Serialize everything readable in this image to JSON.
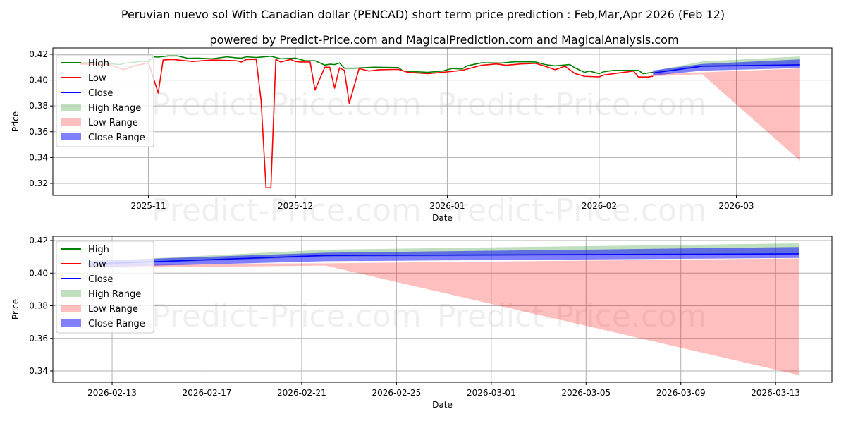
{
  "title": "Peruvian nuevo sol With Canadian dollar (PENCAD) short term price prediction : Feb,Mar,Apr 2026 (Feb 12)",
  "subtitle": "powered by Predict-Price.com and MagicalPrediction.com and MagicalAnalysis.com",
  "watermark": "Predict-Price.com",
  "colors": {
    "high": "#008000",
    "low": "#ff0000",
    "close": "#0000ff",
    "high_range": "rgba(0,128,0,0.25)",
    "low_range": "rgba(255,0,0,0.25)",
    "close_range": "rgba(0,0,255,0.5)"
  },
  "legend": [
    "High",
    "Low",
    "Close",
    "High Range",
    "Low Range",
    "Close Range"
  ],
  "chart_data": [
    {
      "type": "line",
      "xlabel": "Date",
      "ylabel": "Price",
      "xlim": [
        "2025-10-12T12:00",
        "2026-03-20T12:00"
      ],
      "ylim": [
        0.3107,
        0.4249
      ],
      "grid": true,
      "legend_position": "top-left",
      "xticks": [
        "2025-11",
        "2025-12",
        "2026-01",
        "2026-02",
        "2026-03"
      ],
      "yticks": [
        "0.32",
        "0.34",
        "0.36",
        "0.38",
        "0.40",
        "0.42"
      ],
      "series": [
        {
          "name": "High",
          "points": [
            [
              "2025-10-18",
              0.4135
            ],
            [
              "2025-10-22",
              0.4135
            ],
            [
              "2025-10-26",
              0.412
            ],
            [
              "2025-10-28",
              0.4135
            ],
            [
              "2025-10-31",
              0.4145
            ],
            [
              "2025-11-01",
              0.4145
            ],
            [
              "2025-11-02",
              0.418
            ],
            [
              "2025-11-03",
              0.4178
            ],
            [
              "2025-11-05",
              0.4187
            ],
            [
              "2025-11-07",
              0.4187
            ],
            [
              "2025-11-09",
              0.4169
            ],
            [
              "2025-11-11",
              0.417
            ],
            [
              "2025-11-14",
              0.4165
            ],
            [
              "2025-11-17",
              0.418
            ],
            [
              "2025-11-19",
              0.4172
            ],
            [
              "2025-11-20",
              0.417
            ],
            [
              "2025-11-21",
              0.418
            ],
            [
              "2025-11-23",
              0.4175
            ],
            [
              "2025-11-26",
              0.4185
            ],
            [
              "2025-11-28",
              0.4165
            ],
            [
              "2025-12-01",
              0.417
            ],
            [
              "2025-12-03",
              0.415
            ],
            [
              "2025-12-05",
              0.415
            ],
            [
              "2025-12-07",
              0.4116
            ],
            [
              "2025-12-08",
              0.4123
            ],
            [
              "2025-12-09",
              0.412
            ],
            [
              "2025-12-10",
              0.4133
            ],
            [
              "2025-12-11",
              0.4092
            ],
            [
              "2025-12-13",
              0.4092
            ],
            [
              "2025-12-17",
              0.41
            ],
            [
              "2025-12-22",
              0.4097
            ],
            [
              "2025-12-23",
              0.407
            ],
            [
              "2025-12-28",
              0.406
            ],
            [
              "2025-12-31",
              0.407
            ],
            [
              "2026-01-02",
              0.409
            ],
            [
              "2026-01-04",
              0.4085
            ],
            [
              "2026-01-05",
              0.411
            ],
            [
              "2026-01-08",
              0.4134
            ],
            [
              "2026-01-12",
              0.4132
            ],
            [
              "2026-01-15",
              0.4143
            ],
            [
              "2026-01-19",
              0.414
            ],
            [
              "2026-01-21",
              0.412
            ],
            [
              "2026-01-23",
              0.411
            ],
            [
              "2026-01-26",
              0.412
            ],
            [
              "2026-01-27",
              0.4096
            ],
            [
              "2026-01-29",
              0.406
            ],
            [
              "2026-01-30",
              0.407
            ],
            [
              "2026-02-01",
              0.405
            ],
            [
              "2026-02-02",
              0.4065
            ],
            [
              "2026-02-04",
              0.4075
            ],
            [
              "2026-02-08",
              0.4075
            ],
            [
              "2026-02-09",
              0.4075
            ],
            [
              "2026-02-10",
              0.405
            ],
            [
              "2026-02-12",
              0.406
            ]
          ]
        },
        {
          "name": "Low",
          "points": [
            [
              "2025-10-18",
              0.4125
            ],
            [
              "2025-10-24",
              0.412
            ],
            [
              "2025-10-27",
              0.408
            ],
            [
              "2025-10-29",
              0.411
            ],
            [
              "2025-10-31",
              0.4125
            ],
            [
              "2025-11-01",
              0.4135
            ],
            [
              "2025-11-03",
              0.39
            ],
            [
              "2025-11-04",
              0.4156
            ],
            [
              "2025-11-06",
              0.416
            ],
            [
              "2025-11-10",
              0.4144
            ],
            [
              "2025-11-14",
              0.4156
            ],
            [
              "2025-11-19",
              0.415
            ],
            [
              "2025-11-20",
              0.414
            ],
            [
              "2025-11-21",
              0.416
            ],
            [
              "2025-11-23",
              0.416
            ],
            [
              "2025-11-24",
              0.384
            ],
            [
              "2025-11-25",
              0.3167
            ],
            [
              "2025-11-26",
              0.3165
            ],
            [
              "2025-11-27",
              0.416
            ],
            [
              "2025-11-28",
              0.414
            ],
            [
              "2025-11-30",
              0.416
            ],
            [
              "2025-12-01",
              0.4144
            ],
            [
              "2025-12-02",
              0.414
            ],
            [
              "2025-12-04",
              0.414
            ],
            [
              "2025-12-05",
              0.3923
            ],
            [
              "2025-12-07",
              0.41
            ],
            [
              "2025-12-08",
              0.41
            ],
            [
              "2025-12-09",
              0.3938
            ],
            [
              "2025-12-10",
              0.4095
            ],
            [
              "2025-12-11",
              0.4075
            ],
            [
              "2025-12-12",
              0.382
            ],
            [
              "2025-12-14",
              0.409
            ],
            [
              "2025-12-16",
              0.407
            ],
            [
              "2025-12-18",
              0.408
            ],
            [
              "2025-12-22",
              0.4083
            ],
            [
              "2025-12-24",
              0.406
            ],
            [
              "2025-12-28",
              0.405
            ],
            [
              "2025-12-31",
              0.406
            ],
            [
              "2026-01-04",
              0.4075
            ],
            [
              "2026-01-08",
              0.4115
            ],
            [
              "2026-01-11",
              0.4125
            ],
            [
              "2026-01-13",
              0.4115
            ],
            [
              "2026-01-16",
              0.4125
            ],
            [
              "2026-01-19",
              0.413
            ],
            [
              "2026-01-21",
              0.4107
            ],
            [
              "2026-01-23",
              0.408
            ],
            [
              "2026-01-25",
              0.4107
            ],
            [
              "2026-01-27",
              0.4052
            ],
            [
              "2026-01-29",
              0.4029
            ],
            [
              "2026-02-01",
              0.4025
            ],
            [
              "2026-02-02",
              0.404
            ],
            [
              "2026-02-04",
              0.405
            ],
            [
              "2026-02-06",
              0.406
            ],
            [
              "2026-02-08",
              0.407
            ],
            [
              "2026-02-09",
              0.4024
            ],
            [
              "2026-02-11",
              0.4024
            ],
            [
              "2026-02-12",
              0.403
            ]
          ]
        },
        {
          "name": "Close",
          "points": [
            [
              "2026-02-12",
              0.4055
            ],
            [
              "2026-02-22",
              0.4108
            ],
            [
              "2026-03-14",
              0.4118
            ]
          ]
        }
      ],
      "ranges": [
        {
          "name": "High Range",
          "dates": [
            "2026-02-12",
            "2026-02-22",
            "2026-03-14"
          ],
          "upper": [
            0.407,
            0.4144,
            0.4183
          ],
          "lower": [
            0.405,
            0.41,
            0.4115
          ]
        },
        {
          "name": "Low Range",
          "dates": [
            "2026-02-12",
            "2026-02-22",
            "2026-03-14"
          ],
          "upper": [
            0.4055,
            0.406,
            0.409
          ],
          "lower": [
            0.403,
            0.4046,
            0.3375
          ]
        },
        {
          "name": "Close Range",
          "dates": [
            "2026-02-12",
            "2026-02-22",
            "2026-03-14"
          ],
          "upper": [
            0.4075,
            0.4125,
            0.416
          ],
          "lower": [
            0.4035,
            0.4073,
            0.4093
          ]
        }
      ]
    },
    {
      "type": "line",
      "xlabel": "Date",
      "ylabel": "Price",
      "xlim": [
        "2026-02-10T12:00",
        "2026-03-15T09:00"
      ],
      "ylim": [
        0.3331,
        0.4226
      ],
      "grid": true,
      "legend_position": "top-left",
      "xticks": [
        "2026-02-13",
        "2026-02-17",
        "2026-02-21",
        "2026-02-25",
        "2026-03-01",
        "2026-03-05",
        "2026-03-09",
        "2026-03-13"
      ],
      "yticks": [
        "0.34",
        "0.36",
        "0.38",
        "0.40",
        "0.42"
      ],
      "series": [
        {
          "name": "Close",
          "points": [
            [
              "2026-02-12",
              0.4055
            ],
            [
              "2026-02-22",
              0.4108
            ],
            [
              "2026-03-14",
              0.4118
            ]
          ]
        }
      ],
      "ranges": [
        {
          "name": "High Range",
          "dates": [
            "2026-02-12",
            "2026-02-22",
            "2026-03-14"
          ],
          "upper": [
            0.407,
            0.4144,
            0.4183
          ],
          "lower": [
            0.405,
            0.41,
            0.4115
          ]
        },
        {
          "name": "Low Range",
          "dates": [
            "2026-02-12",
            "2026-02-22",
            "2026-03-14"
          ],
          "upper": [
            0.4055,
            0.406,
            0.409
          ],
          "lower": [
            0.403,
            0.4046,
            0.3375
          ]
        },
        {
          "name": "Close Range",
          "dates": [
            "2026-02-12",
            "2026-02-22",
            "2026-03-14"
          ],
          "upper": [
            0.4075,
            0.4125,
            0.416
          ],
          "lower": [
            0.4035,
            0.4073,
            0.4093
          ]
        }
      ]
    }
  ]
}
